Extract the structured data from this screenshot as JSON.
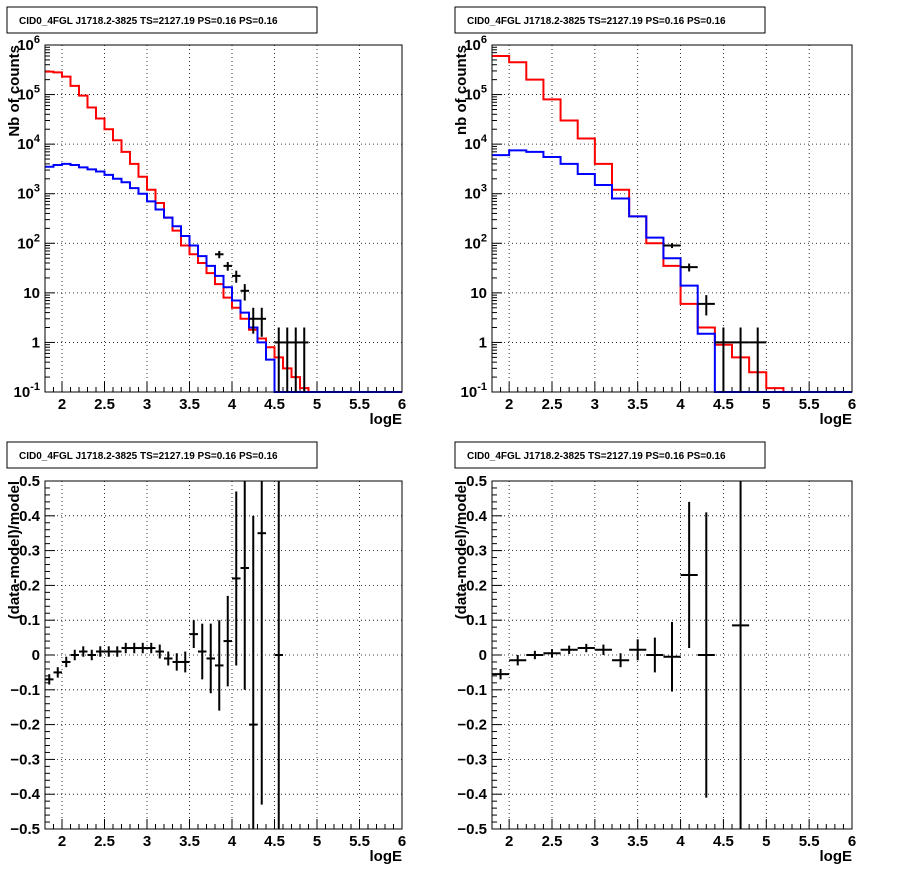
{
  "chart_data": [
    {
      "type": "line",
      "panel": "top-left",
      "title": "CID0_4FGL J1718.2-3825 TS=2127.19 PS=0.16 PS=0.16",
      "xlabel": "logE",
      "ylabel": "Nb of counts",
      "xlim": [
        1.8,
        6.0
      ],
      "ylim": [
        0.1,
        1000000
      ],
      "yscale": "log",
      "grid": true,
      "xticks": [
        "2",
        "2.5",
        "3",
        "3.5",
        "4",
        "4.5",
        "5",
        "5.5",
        "6"
      ],
      "yticks": [
        "10^-1",
        "1",
        "10",
        "10^2",
        "10^3",
        "10^4",
        "10^5",
        "10^6"
      ],
      "series": [
        {
          "style": "step",
          "color": "#ff0000",
          "edges": [
            1.8,
            1.9,
            2.0,
            2.1,
            2.2,
            2.3,
            2.4,
            2.5,
            2.6,
            2.7,
            2.8,
            2.9,
            3.0,
            3.1,
            3.2,
            3.3,
            3.4,
            3.5,
            3.6,
            3.7,
            3.8,
            3.9,
            4.0,
            4.1,
            4.2,
            4.3,
            4.4,
            4.5,
            4.6,
            4.7,
            4.8,
            4.9,
            5.0,
            5.1,
            5.2,
            5.3,
            5.4,
            5.5,
            5.6,
            5.7,
            5.8,
            5.9,
            6.0
          ],
          "values": [
            290000,
            280000,
            230000,
            150000,
            95000,
            55000,
            33000,
            20000,
            12000,
            7000,
            4000,
            2200,
            1200,
            650,
            330,
            180,
            90,
            60,
            40,
            25,
            15,
            8,
            5,
            3,
            1.8,
            1.2,
            0.8,
            0.5,
            0.3,
            0.2,
            0.12,
            0.1,
            0.1,
            0.1,
            0.1,
            0.1,
            0.1,
            0.1,
            0.1,
            0.1,
            0.1,
            0.1
          ]
        },
        {
          "style": "step",
          "color": "#0000ff",
          "edges": [
            1.8,
            1.9,
            2.0,
            2.1,
            2.2,
            2.3,
            2.4,
            2.5,
            2.6,
            2.7,
            2.8,
            2.9,
            3.0,
            3.1,
            3.2,
            3.3,
            3.4,
            3.5,
            3.6,
            3.7,
            3.8,
            3.9,
            4.0,
            4.1,
            4.2,
            4.3,
            4.4,
            4.5,
            4.6,
            4.7,
            4.8,
            4.9,
            5.0,
            5.1,
            5.2,
            5.3,
            5.4,
            5.5,
            5.6,
            5.7,
            5.8,
            5.9,
            6.0
          ],
          "values": [
            3500,
            3800,
            4000,
            3800,
            3400,
            3100,
            2800,
            2400,
            2000,
            1700,
            1300,
            1000,
            700,
            480,
            330,
            220,
            140,
            90,
            55,
            35,
            22,
            13,
            7,
            4,
            2,
            1,
            0.45,
            0.1,
            0.1,
            0.1,
            0.1,
            0.1,
            0.1,
            0.1,
            0.1,
            0.1,
            0.1,
            0.1,
            0.1,
            0.1,
            0.1,
            0.1
          ]
        },
        {
          "style": "errorbar",
          "color": "#000000",
          "x": [
            3.85,
            3.95,
            4.05,
            4.15,
            4.25,
            4.35,
            4.55,
            4.65,
            4.75,
            4.85
          ],
          "xerr": 0.05,
          "y": [
            60,
            35,
            22,
            11,
            3,
            3,
            1,
            1,
            1,
            1
          ],
          "ylo": [
            50,
            28,
            16,
            7,
            1.5,
            1.3,
            0.1,
            0.1,
            0.1,
            0.1
          ],
          "yhi": [
            70,
            42,
            28,
            15,
            5,
            5,
            2,
            2,
            2,
            2
          ]
        }
      ]
    },
    {
      "type": "line",
      "panel": "top-right",
      "title": "CID0_4FGL J1718.2-3825 TS=2127.19 PS=0.16 PS=0.16",
      "xlabel": "logE",
      "ylabel": "nb of counts",
      "xlim": [
        1.8,
        6.0
      ],
      "ylim": [
        0.1,
        1000000
      ],
      "yscale": "log",
      "grid": true,
      "xticks": [
        "2",
        "2.5",
        "3",
        "3.5",
        "4",
        "4.5",
        "5",
        "5.5",
        "6"
      ],
      "yticks": [
        "10^-1",
        "1",
        "10",
        "10^2",
        "10^3",
        "10^4",
        "10^5",
        "10^6"
      ],
      "series": [
        {
          "style": "step",
          "color": "#ff0000",
          "edges": [
            1.8,
            2.0,
            2.2,
            2.4,
            2.6,
            2.8,
            3.0,
            3.2,
            3.4,
            3.6,
            3.8,
            4.0,
            4.2,
            4.4,
            4.6,
            4.8,
            5.0,
            5.2,
            5.4,
            5.6,
            5.8,
            6.0
          ],
          "values": [
            600000,
            450000,
            200000,
            80000,
            30000,
            13000,
            4000,
            1200,
            350,
            100,
            35,
            6,
            2,
            0.9,
            0.5,
            0.25,
            0.12,
            0.1,
            0.1,
            0.1,
            0.1
          ]
        },
        {
          "style": "step",
          "color": "#0000ff",
          "edges": [
            1.8,
            2.0,
            2.2,
            2.4,
            2.6,
            2.8,
            3.0,
            3.2,
            3.4,
            3.6,
            3.8,
            4.0,
            4.2,
            4.4,
            4.6,
            4.8,
            5.0,
            5.2,
            5.4,
            5.6,
            5.8,
            6.0
          ],
          "values": [
            6000,
            7500,
            7000,
            5500,
            4000,
            2500,
            1500,
            800,
            350,
            130,
            50,
            14,
            1.5,
            0.1,
            0.1,
            0.1,
            0.1,
            0.1,
            0.1,
            0.1,
            0.1
          ]
        },
        {
          "style": "errorbar",
          "color": "#000000",
          "x": [
            3.9,
            4.1,
            4.3,
            4.5,
            4.7,
            4.9
          ],
          "xerr": 0.1,
          "y": [
            90,
            33,
            6,
            1,
            1,
            1
          ],
          "ylo": [
            80,
            27,
            3.5,
            0.1,
            0.1,
            0.1
          ],
          "yhi": [
            100,
            39,
            9,
            2,
            2,
            2
          ]
        }
      ]
    },
    {
      "type": "scatter",
      "panel": "bottom-left",
      "title": "CID0_4FGL J1718.2-3825 TS=2127.19 PS=0.16 PS=0.16",
      "xlabel": "logE",
      "ylabel": "(data-model)/model",
      "xlim": [
        1.8,
        6.0
      ],
      "ylim": [
        -0.5,
        0.5
      ],
      "grid": true,
      "xticks": [
        "2",
        "2.5",
        "3",
        "3.5",
        "4",
        "4.5",
        "5",
        "5.5",
        "6"
      ],
      "yticks": [
        "−0.5",
        "−0.4",
        "−0.3",
        "−0.2",
        "−0.1",
        "0",
        "0.1",
        "0.2",
        "0.3",
        "0.4",
        "0.5"
      ],
      "series": [
        {
          "style": "errorbar",
          "color": "#000000",
          "xerr": 0.05,
          "x": [
            1.85,
            1.95,
            2.05,
            2.15,
            2.25,
            2.35,
            2.45,
            2.55,
            2.65,
            2.75,
            2.85,
            2.95,
            3.05,
            3.15,
            3.25,
            3.35,
            3.45,
            3.55,
            3.65,
            3.75,
            3.85,
            3.95,
            4.05,
            4.15,
            4.25,
            4.35,
            4.55
          ],
          "y": [
            -0.07,
            -0.05,
            -0.02,
            0.0,
            0.01,
            0.0,
            0.01,
            0.01,
            0.01,
            0.02,
            0.02,
            0.02,
            0.02,
            0.01,
            -0.01,
            -0.02,
            -0.02,
            0.06,
            0.01,
            -0.01,
            -0.03,
            0.04,
            0.22,
            0.25,
            -0.2,
            0.35,
            0.0
          ],
          "err": [
            0.015,
            0.015,
            0.015,
            0.015,
            0.015,
            0.015,
            0.015,
            0.015,
            0.015,
            0.015,
            0.015,
            0.015,
            0.015,
            0.02,
            0.02,
            0.025,
            0.03,
            0.04,
            0.08,
            0.1,
            0.13,
            0.13,
            0.25,
            0.35,
            0.6,
            0.78,
            0.55
          ]
        }
      ]
    },
    {
      "type": "scatter",
      "panel": "bottom-right",
      "title": "CID0_4FGL J1718.2-3825 TS=2127.19 PS=0.16 PS=0.16",
      "xlabel": "logE",
      "ylabel": "(data-model)/model",
      "xlim": [
        1.8,
        6.0
      ],
      "ylim": [
        -0.5,
        0.5
      ],
      "grid": true,
      "xticks": [
        "2",
        "2.5",
        "3",
        "3.5",
        "4",
        "4.5",
        "5",
        "5.5",
        "6"
      ],
      "yticks": [
        "−0.5",
        "−0.4",
        "−0.3",
        "−0.2",
        "−0.1",
        "0",
        "0.1",
        "0.2",
        "0.3",
        "0.4",
        "0.5"
      ],
      "series": [
        {
          "style": "errorbar",
          "color": "#000000",
          "xerr": 0.1,
          "x": [
            1.9,
            2.1,
            2.3,
            2.5,
            2.7,
            2.9,
            3.1,
            3.3,
            3.5,
            3.7,
            3.9,
            4.1,
            4.3,
            4.7
          ],
          "y": [
            -0.055,
            -0.015,
            0.0,
            0.005,
            0.015,
            0.02,
            0.015,
            -0.015,
            0.015,
            0.0,
            -0.005,
            0.23,
            0.0,
            0.085
          ],
          "err": [
            0.015,
            0.015,
            0.012,
            0.012,
            0.012,
            0.012,
            0.015,
            0.02,
            0.03,
            0.05,
            0.1,
            0.21,
            0.41,
            0.6
          ]
        }
      ]
    }
  ]
}
